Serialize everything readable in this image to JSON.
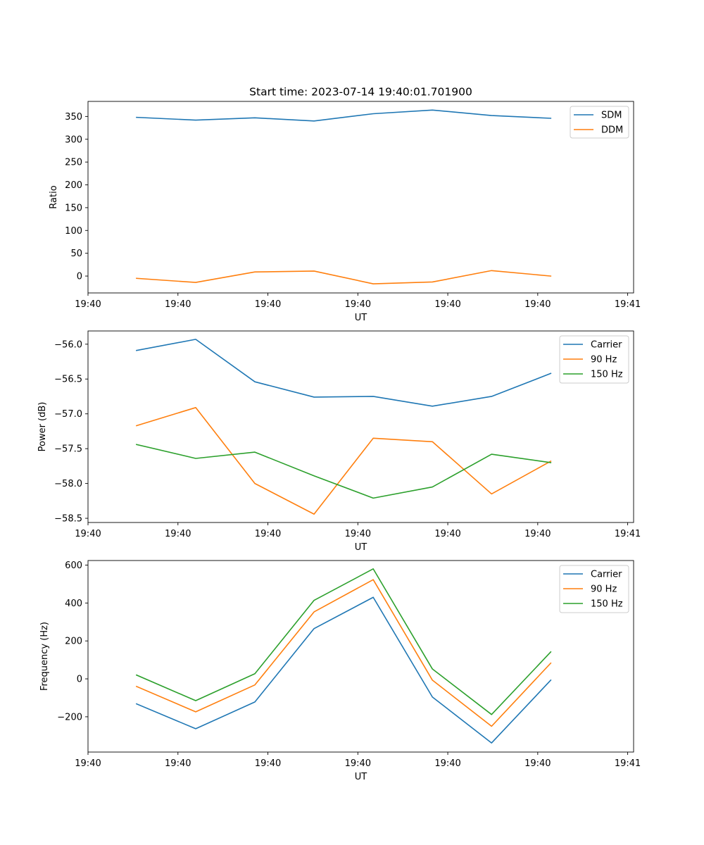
{
  "title": "Start time: 2023-07-14 19:40:01.701900",
  "chart_data": [
    {
      "type": "line",
      "title": "Start time: 2023-07-14 19:40:01.701900",
      "xlabel": "UT",
      "ylabel": "Ratio",
      "x": [
        1,
        2,
        3,
        4,
        5,
        6,
        7,
        8
      ],
      "xlim": [
        0.18,
        9.4
      ],
      "x_ticks": [
        0.18,
        1.7,
        3.22,
        4.74,
        6.26,
        7.78,
        9.3
      ],
      "x_tick_labels": [
        "19:40",
        "19:40",
        "19:40",
        "19:40",
        "19:40",
        "19:40",
        "19:41"
      ],
      "ylim": [
        -37,
        383
      ],
      "y_ticks": [
        0,
        50,
        100,
        150,
        200,
        250,
        300,
        350
      ],
      "legend": "top-right",
      "series": [
        {
          "name": "SDM",
          "color": "#1f77b4",
          "values": [
            348,
            342,
            347,
            340,
            356,
            364,
            352,
            346
          ]
        },
        {
          "name": "DDM",
          "color": "#ff7f0e",
          "values": [
            -5,
            -14,
            9,
            11,
            -17,
            -13,
            12,
            0
          ]
        }
      ]
    },
    {
      "type": "line",
      "xlabel": "UT",
      "ylabel": "Power (dB)",
      "x": [
        1,
        2,
        3,
        4,
        5,
        6,
        7,
        8
      ],
      "xlim": [
        0.18,
        9.4
      ],
      "x_ticks": [
        0.18,
        1.7,
        3.22,
        4.74,
        6.26,
        7.78,
        9.3
      ],
      "x_tick_labels": [
        "19:40",
        "19:40",
        "19:40",
        "19:40",
        "19:40",
        "19:40",
        "19:41"
      ],
      "ylim": [
        -58.56,
        -55.81
      ],
      "y_ticks": [
        -58.5,
        -58.0,
        -57.5,
        -57.0,
        -56.5,
        -56.0
      ],
      "y_tick_labels": [
        "−58.5",
        "−58.0",
        "−57.5",
        "−57.0",
        "−56.5",
        "−56.0"
      ],
      "legend": "top-right",
      "series": [
        {
          "name": "Carrier",
          "color": "#1f77b4",
          "values": [
            -56.09,
            -55.93,
            -56.54,
            -56.76,
            -56.75,
            -56.89,
            -56.75,
            -56.42
          ]
        },
        {
          "name": "90 Hz",
          "color": "#ff7f0e",
          "values": [
            -57.17,
            -56.91,
            -58.0,
            -58.44,
            -57.35,
            -57.4,
            -58.15,
            -57.68
          ]
        },
        {
          "name": "150 Hz",
          "color": "#2ca02c",
          "values": [
            -57.44,
            -57.64,
            -57.55,
            -57.89,
            -58.21,
            -58.05,
            -57.58,
            -57.7
          ]
        }
      ]
    },
    {
      "type": "line",
      "xlabel": "UT",
      "ylabel": "Frequency (Hz)",
      "x": [
        1,
        2,
        3,
        4,
        5,
        6,
        7,
        8
      ],
      "xlim": [
        0.18,
        9.4
      ],
      "x_ticks": [
        0.18,
        1.7,
        3.22,
        4.74,
        6.26,
        7.78,
        9.3
      ],
      "x_tick_labels": [
        "19:40",
        "19:40",
        "19:40",
        "19:40",
        "19:40",
        "19:40",
        "19:41"
      ],
      "ylim": [
        -386,
        624
      ],
      "y_ticks": [
        -200,
        0,
        200,
        400,
        600
      ],
      "y_tick_labels": [
        "−200",
        "0",
        "200",
        "400",
        "600"
      ],
      "legend": "top-right",
      "series": [
        {
          "name": "Carrier",
          "color": "#1f77b4",
          "values": [
            -132,
            -263,
            -122,
            265,
            430,
            -96,
            -338,
            -7
          ]
        },
        {
          "name": "90 Hz",
          "color": "#ff7f0e",
          "values": [
            -40,
            -174,
            -32,
            353,
            523,
            -7,
            -250,
            83
          ]
        },
        {
          "name": "150 Hz",
          "color": "#2ca02c",
          "values": [
            20,
            -115,
            27,
            414,
            580,
            52,
            -188,
            142
          ]
        }
      ]
    }
  ]
}
